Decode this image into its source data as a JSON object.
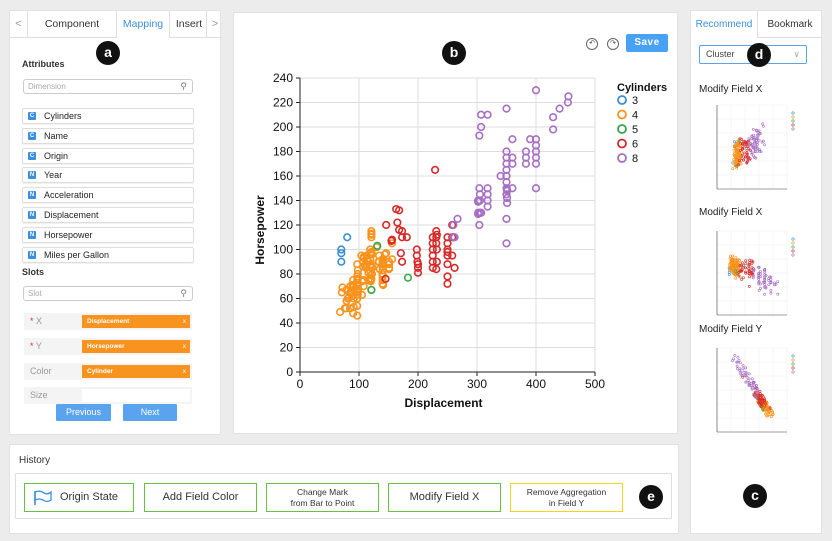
{
  "left_panel": {
    "nav_prev_icon": "<",
    "nav_next_icon": ">",
    "tabs": [
      "Component",
      "Mapping",
      "Insert"
    ],
    "active_tab": "Mapping",
    "attributes_title": "Attributes",
    "dimension_placeholder": "Dimension",
    "attributes": [
      {
        "type": "C",
        "name": "Cylinders"
      },
      {
        "type": "C",
        "name": "Name"
      },
      {
        "type": "C",
        "name": "Origin"
      },
      {
        "type": "N",
        "name": "Year"
      },
      {
        "type": "N",
        "name": "Acceleration"
      },
      {
        "type": "N",
        "name": "Displacement"
      },
      {
        "type": "N",
        "name": "Horsepower"
      },
      {
        "type": "N",
        "name": "Miles per Gallon"
      }
    ],
    "slots_title": "Slots",
    "slot_placeholder": "Slot",
    "slots": [
      {
        "name": "X",
        "required": "*",
        "value": "Displacement",
        "remove": "x"
      },
      {
        "name": "Y",
        "required": "*",
        "value": "Horsepower",
        "remove": "x"
      },
      {
        "name": "Color",
        "required": "",
        "value": "Cylinder",
        "remove": "x"
      },
      {
        "name": "Size",
        "required": "",
        "value": "",
        "remove": ""
      }
    ],
    "previous_label": "Previous",
    "next_label": "Next"
  },
  "badges": {
    "a": "a",
    "b": "b",
    "c": "c",
    "d": "d",
    "e": "e"
  },
  "toolbar": {
    "undo_icon": "undo-icon",
    "redo_icon": "redo-icon",
    "save_label": "Save",
    "undo_glyph": "↶",
    "redo_glyph": "↷"
  },
  "chart_data": {
    "type": "scatter",
    "xlabel": "Displacement",
    "ylabel": "Horsepower",
    "xlim": [
      0,
      500
    ],
    "ylim": [
      0,
      240
    ],
    "xticks": [
      0,
      100,
      200,
      300,
      400,
      500
    ],
    "yticks": [
      0,
      20,
      40,
      60,
      80,
      100,
      120,
      140,
      160,
      180,
      200,
      220,
      240
    ],
    "grid": true,
    "legend_title": "Cylinders",
    "legend_position": "top-right",
    "series": [
      {
        "name": "3",
        "color": "#3b8fd1",
        "points": [
          [
            70,
            90
          ],
          [
            70,
            97
          ],
          [
            70,
            100
          ],
          [
            80,
            110
          ]
        ]
      },
      {
        "name": "4",
        "color": "#f7931e",
        "points": [
          [
            68,
            49
          ],
          [
            71,
            65
          ],
          [
            72,
            69
          ],
          [
            76,
            52
          ],
          [
            79,
            58
          ],
          [
            79,
            67
          ],
          [
            85,
            52
          ],
          [
            85,
            65
          ],
          [
            85,
            70
          ],
          [
            86,
            64
          ],
          [
            89,
            62
          ],
          [
            90,
            48
          ],
          [
            90,
            70
          ],
          [
            90,
            75
          ],
          [
            91,
            53
          ],
          [
            91,
            67
          ],
          [
            91,
            60
          ],
          [
            97,
            46
          ],
          [
            97,
            54
          ],
          [
            97,
            60
          ],
          [
            97,
            67
          ],
          [
            97,
            75
          ],
          [
            97,
            78
          ],
          [
            97,
            88
          ],
          [
            98,
            63
          ],
          [
            98,
            65
          ],
          [
            98,
            66
          ],
          [
            98,
            68
          ],
          [
            98,
            70
          ],
          [
            98,
            76
          ],
          [
            98,
            80
          ],
          [
            98,
            83
          ],
          [
            104,
            95
          ],
          [
            105,
            63
          ],
          [
            105,
            74
          ],
          [
            107,
            75
          ],
          [
            107,
            86
          ],
          [
            107,
            90
          ],
          [
            108,
            75
          ],
          [
            108,
            93
          ],
          [
            108,
            94
          ],
          [
            110,
            87
          ],
          [
            112,
            85
          ],
          [
            112,
            88
          ],
          [
            113,
            95
          ],
          [
            114,
            91
          ],
          [
            116,
            75
          ],
          [
            116,
            81
          ],
          [
            116,
            90
          ],
          [
            119,
            82
          ],
          [
            119,
            97
          ],
          [
            119,
            100
          ],
          [
            120,
            74
          ],
          [
            120,
            75
          ],
          [
            120,
            79
          ],
          [
            120,
            87
          ],
          [
            120,
            88
          ],
          [
            120,
            97
          ],
          [
            121,
            67
          ],
          [
            121,
            76
          ],
          [
            121,
            98
          ],
          [
            121,
            110
          ],
          [
            121,
            112
          ],
          [
            121,
            113
          ],
          [
            121,
            115
          ],
          [
            122,
            80
          ],
          [
            122,
            85
          ],
          [
            122,
            86
          ],
          [
            122,
            96
          ],
          [
            133,
            90
          ],
          [
            134,
            90
          ],
          [
            134,
            95
          ],
          [
            135,
            84
          ],
          [
            140,
            72
          ],
          [
            140,
            75
          ],
          [
            140,
            78
          ],
          [
            140,
            80
          ],
          [
            140,
            83
          ],
          [
            140,
            86
          ],
          [
            140,
            88
          ],
          [
            140,
            89
          ],
          [
            140,
            90
          ],
          [
            140,
            92
          ],
          [
            141,
            71
          ],
          [
            146,
            97
          ],
          [
            151,
            84
          ],
          [
            151,
            85
          ],
          [
            151,
            88
          ],
          [
            151,
            90
          ],
          [
            156,
            92
          ],
          [
            156,
            105
          ],
          [
            97,
            71
          ],
          [
            113,
            95
          ],
          [
            119,
            92
          ],
          [
            135,
            84
          ],
          [
            91,
            70
          ],
          [
            78,
            52
          ],
          [
            81,
            60
          ],
          [
            89,
            71
          ],
          [
            108,
            70
          ],
          [
            83,
            61
          ],
          [
            112,
            88
          ],
          [
            144,
            96
          ],
          [
            130,
            102
          ]
        ]
      },
      {
        "name": "5",
        "color": "#3aa84a",
        "points": [
          [
            121,
            67
          ],
          [
            131,
            103
          ],
          [
            183,
            77
          ]
        ]
      },
      {
        "name": "6",
        "color": "#d62a2a",
        "points": [
          [
            145,
            76
          ],
          [
            146,
            120
          ],
          [
            156,
            108
          ],
          [
            163,
            133
          ],
          [
            168,
            116
          ],
          [
            168,
            132
          ],
          [
            171,
            97
          ],
          [
            173,
            110
          ],
          [
            173,
            115
          ],
          [
            181,
            110
          ],
          [
            198,
            95
          ],
          [
            199,
            90
          ],
          [
            200,
            85
          ],
          [
            200,
            88
          ],
          [
            225,
            95
          ],
          [
            225,
            100
          ],
          [
            225,
            105
          ],
          [
            225,
            110
          ],
          [
            229,
            165
          ],
          [
            231,
            105
          ],
          [
            231,
            110
          ],
          [
            232,
            90
          ],
          [
            232,
            100
          ],
          [
            231,
            115
          ],
          [
            225,
            85
          ],
          [
            250,
            72
          ],
          [
            250,
            78
          ],
          [
            250,
            88
          ],
          [
            250,
            100
          ],
          [
            250,
            105
          ],
          [
            250,
            110
          ],
          [
            258,
            95
          ],
          [
            258,
            110
          ],
          [
            262,
            85
          ],
          [
            165,
            122
          ],
          [
            155,
            107
          ],
          [
            200,
            81
          ],
          [
            250,
            98
          ],
          [
            232,
            112
          ],
          [
            225,
            90
          ],
          [
            231,
            84
          ],
          [
            250,
            95
          ],
          [
            258,
            120
          ],
          [
            198,
            100
          ],
          [
            173,
            90
          ]
        ]
      },
      {
        "name": "8",
        "color": "#a66fc3",
        "points": [
          [
            260,
            110
          ],
          [
            260,
            120
          ],
          [
            262,
            110
          ],
          [
            267,
            125
          ],
          [
            302,
            129
          ],
          [
            302,
            130
          ],
          [
            302,
            139
          ],
          [
            302,
            140
          ],
          [
            304,
            120
          ],
          [
            304,
            150
          ],
          [
            305,
            130
          ],
          [
            305,
            140
          ],
          [
            305,
            145
          ],
          [
            307,
            130
          ],
          [
            307,
            200
          ],
          [
            318,
            135
          ],
          [
            318,
            140
          ],
          [
            318,
            145
          ],
          [
            318,
            150
          ],
          [
            340,
            160
          ],
          [
            350,
            105
          ],
          [
            350,
            125
          ],
          [
            350,
            145
          ],
          [
            350,
            150
          ],
          [
            350,
            155
          ],
          [
            350,
            160
          ],
          [
            350,
            165
          ],
          [
            350,
            170
          ],
          [
            350,
            175
          ],
          [
            350,
            180
          ],
          [
            351,
            138
          ],
          [
            351,
            142
          ],
          [
            351,
            148
          ],
          [
            351,
            149
          ],
          [
            360,
            150
          ],
          [
            360,
            170
          ],
          [
            360,
            175
          ],
          [
            360,
            190
          ],
          [
            383,
            170
          ],
          [
            383,
            180
          ],
          [
            390,
            190
          ],
          [
            400,
            150
          ],
          [
            400,
            170
          ],
          [
            400,
            175
          ],
          [
            400,
            180
          ],
          [
            400,
            190
          ],
          [
            400,
            230
          ],
          [
            429,
            198
          ],
          [
            440,
            215
          ],
          [
            454,
            220
          ],
          [
            455,
            225
          ],
          [
            318,
            210
          ],
          [
            304,
            193
          ],
          [
            307,
            210
          ],
          [
            350,
            215
          ],
          [
            383,
            175
          ],
          [
            400,
            185
          ],
          [
            429,
            208
          ]
        ]
      }
    ]
  },
  "right_panel": {
    "tabs": [
      "Recommend",
      "Bookmark"
    ],
    "active_tab": "Recommend",
    "dropdown_value": "Cluster",
    "dropdown_chevron": "∨",
    "recommendations": [
      {
        "label": "Modify Field X"
      },
      {
        "label": "Modify Field X"
      },
      {
        "label": "Modify Field Y"
      }
    ]
  },
  "history": {
    "title": "History",
    "items": [
      {
        "label": "Origin State",
        "icon": "flag-icon"
      },
      {
        "label": "Add Field Color"
      },
      {
        "label": "Change Mark\nfrom Bar to Point"
      },
      {
        "label": "Modify Field X"
      },
      {
        "label": "Remove Aggregation\nin Field Y"
      }
    ]
  },
  "colors": {
    "accent": "#3b8fe0",
    "history_green": "#69c23e",
    "history_current": "#f5d21e",
    "slot_orange": "#f7931e"
  }
}
